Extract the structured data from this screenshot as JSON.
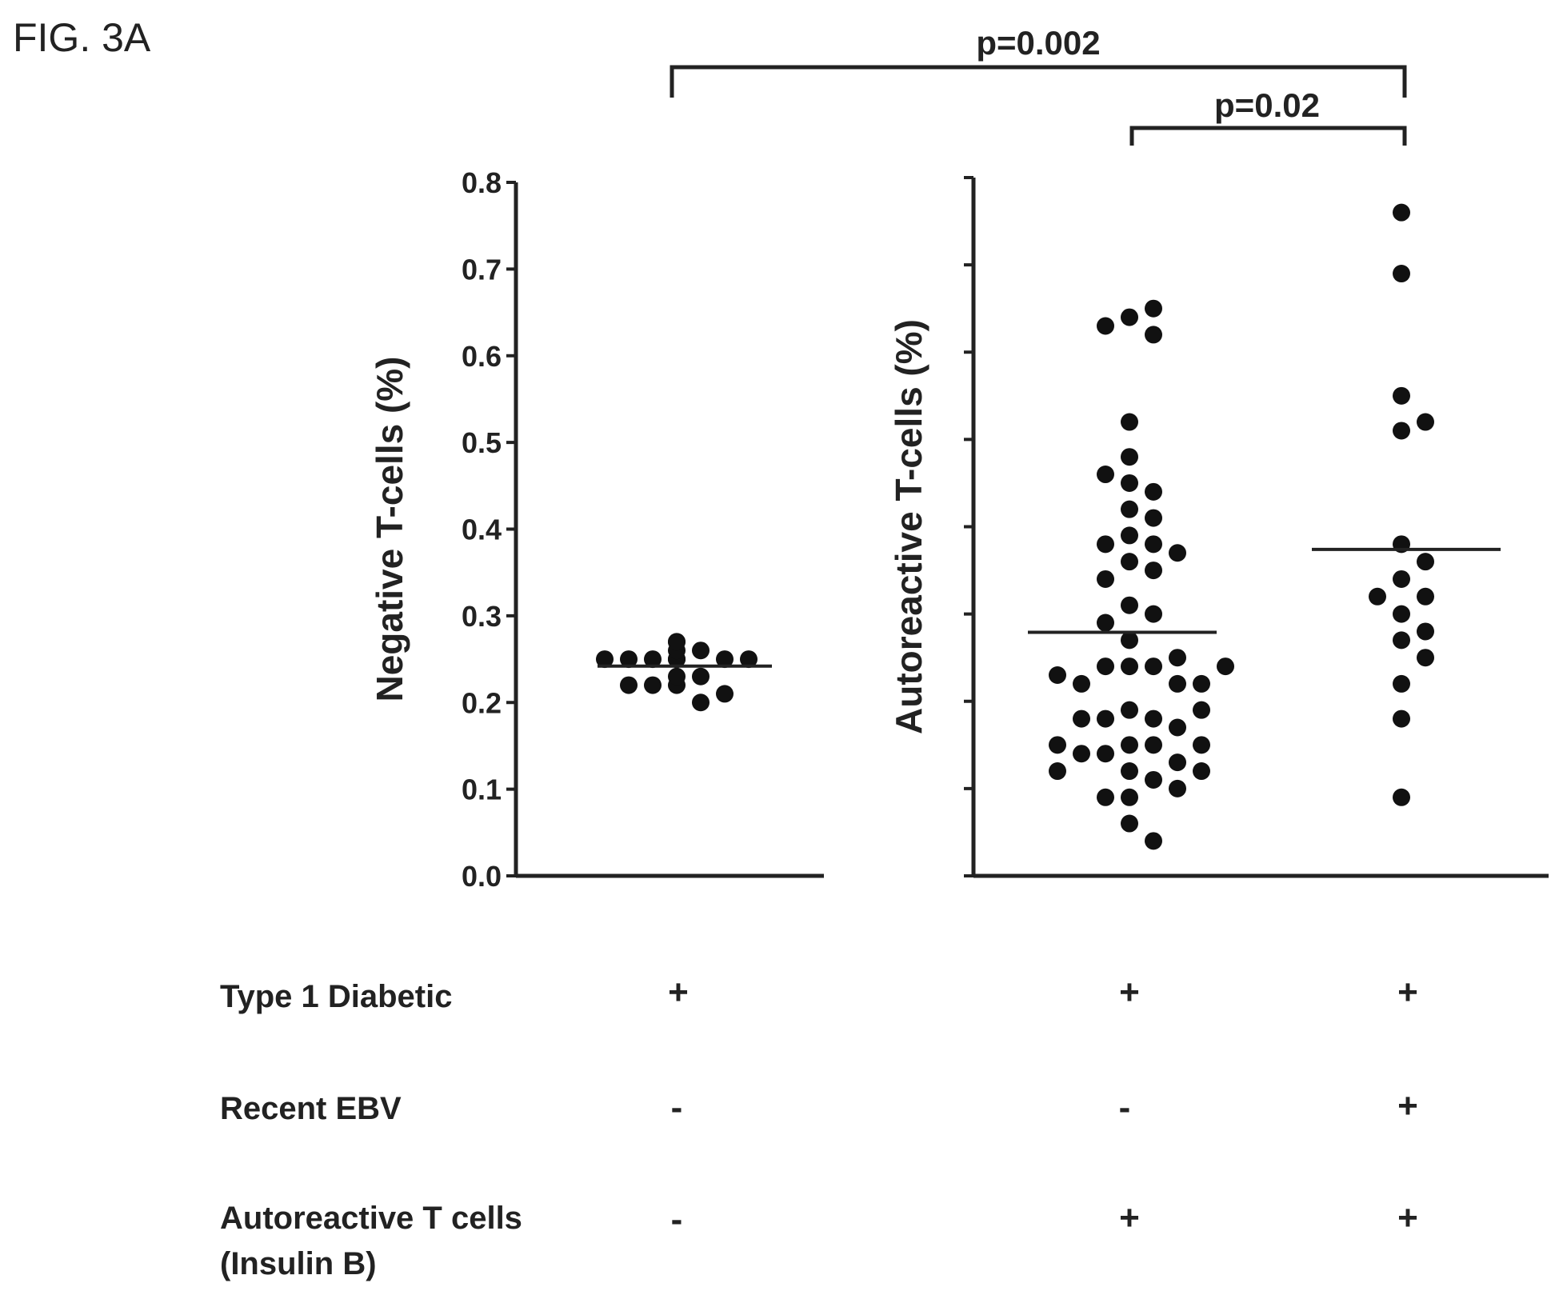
{
  "figure_label": "FIG. 3A",
  "chart_data": [
    {
      "type": "scatter",
      "ylabel": "Negative T-cells (%)",
      "ylim": [
        0,
        0.8
      ],
      "y_ticks": [
        "0.0",
        "0.1",
        "0.2",
        "0.3",
        "0.4",
        "0.5",
        "0.6",
        "0.7",
        "0.8"
      ],
      "groups": [
        {
          "values": [
            0.27,
            0.26,
            0.25,
            0.25,
            0.25,
            0.25,
            0.25,
            0.25,
            0.25,
            0.25,
            0.26,
            0.27,
            0.23,
            0.22,
            0.22,
            0.2,
            0.21,
            0.22,
            0.23
          ],
          "median": 0.242
        }
      ]
    },
    {
      "type": "scatter",
      "ylabel": "Autoreactive T-cells (%)",
      "ylim": [
        0,
        0.8
      ],
      "groups": [
        {
          "values": [
            0.64,
            0.65,
            0.62,
            0.63,
            0.52,
            0.48,
            0.45,
            0.44,
            0.46,
            0.42,
            0.41,
            0.39,
            0.38,
            0.38,
            0.37,
            0.36,
            0.35,
            0.34,
            0.31,
            0.3,
            0.29,
            0.27,
            0.24,
            0.24,
            0.24,
            0.22,
            0.22,
            0.22,
            0.23,
            0.24,
            0.25,
            0.19,
            0.18,
            0.18,
            0.17,
            0.18,
            0.19,
            0.15,
            0.15,
            0.14,
            0.13,
            0.14,
            0.15,
            0.15,
            0.12,
            0.11,
            0.12,
            0.09,
            0.09,
            0.1,
            0.12,
            0.06,
            0.04
          ],
          "median": 0.279
        },
        {
          "values": [
            0.76,
            0.69,
            0.55,
            0.51,
            0.52,
            0.38,
            0.36,
            0.34,
            0.32,
            0.32,
            0.3,
            0.28,
            0.27,
            0.25,
            0.22,
            0.18,
            0.09
          ],
          "median": 0.374
        }
      ],
      "comparisons": [
        {
          "label": "p=0.002",
          "from": "group-1",
          "to": "group-3"
        },
        {
          "label": "p=0.02",
          "from": "group-2",
          "to": "group-3"
        }
      ]
    }
  ],
  "condition_table": {
    "rows": [
      {
        "label": "Type 1 Diabetic",
        "marks": [
          "+",
          "+",
          "+"
        ]
      },
      {
        "label": "Recent EBV",
        "marks": [
          "-",
          "-",
          "+"
        ]
      },
      {
        "label": "Autoreactive T cells",
        "label_line2": "(Insulin B)",
        "marks": [
          "-",
          "+",
          "+"
        ]
      }
    ]
  }
}
